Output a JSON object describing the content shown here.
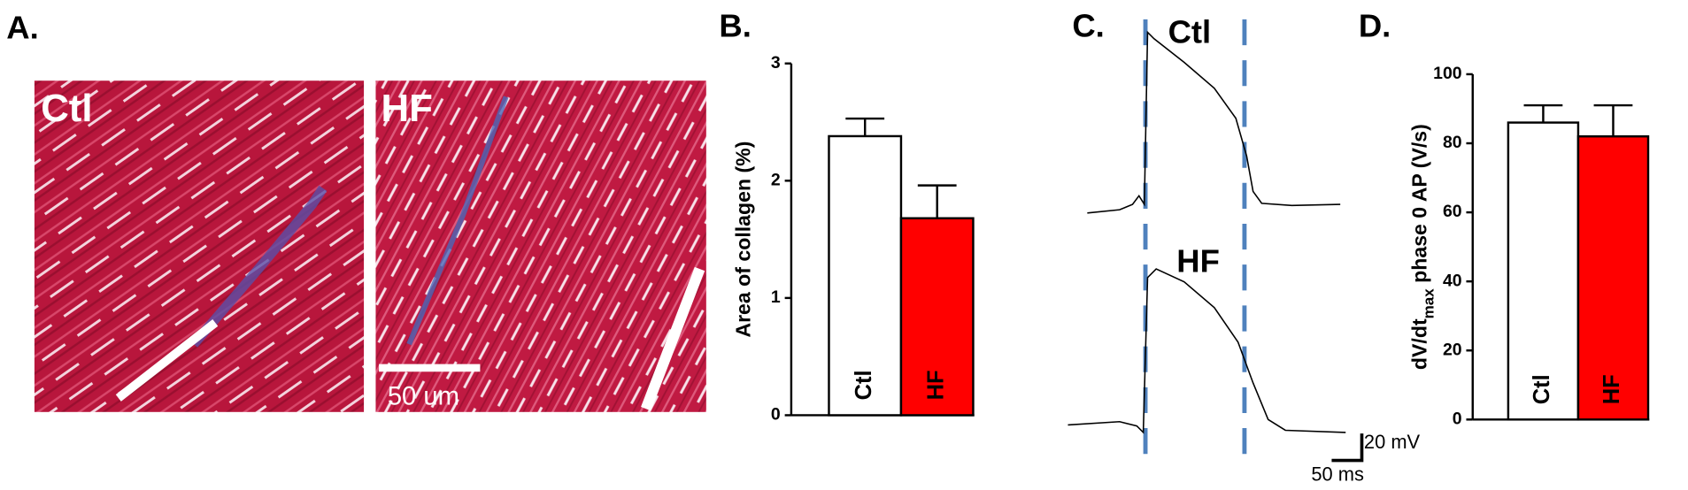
{
  "panel_a": {
    "panel": "A.",
    "images": [
      "Ctl",
      "HF"
    ],
    "scale_bar": "50 um"
  },
  "panel_c": {
    "panel": "C.",
    "traces": [
      "Ctl",
      "HF"
    ],
    "scale_v": "20 mV",
    "scale_t": "50 ms"
  },
  "chart_data": [
    {
      "type": "bar",
      "panel": "B.",
      "ylabel": [
        "Area of collagen (%)"
      ],
      "categories": [
        "Ctl",
        "HF"
      ],
      "values": [
        2.38,
        1.68
      ],
      "errors": [
        0.15,
        0.28
      ],
      "colors": [
        "#ffffff",
        "#ff0000"
      ],
      "ylim": [
        0,
        3
      ],
      "yticks": [
        0,
        1,
        2,
        3
      ]
    },
    {
      "type": "bar",
      "panel": "D.",
      "ylabel": [
        "dV/dt",
        "max",
        " phase 0  AP (V/s)"
      ],
      "categories": [
        "Ctl",
        "HF"
      ],
      "values": [
        86,
        82
      ],
      "errors": [
        5,
        9
      ],
      "colors": [
        "#ffffff",
        "#ff0000"
      ],
      "ylim": [
        0,
        100
      ],
      "yticks": [
        0,
        20,
        40,
        60,
        80,
        100
      ]
    }
  ]
}
